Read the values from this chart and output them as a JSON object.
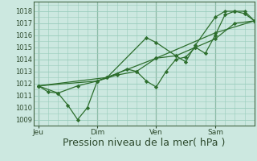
{
  "background_color": "#cce8e0",
  "grid_color": "#99ccbb",
  "line_color": "#2d6e2d",
  "marker_color": "#2d6e2d",
  "xlabel": "Pression niveau de la mer( hPa )",
  "xlabel_fontsize": 9,
  "ylim": [
    1008.5,
    1018.8
  ],
  "yticks": [
    1009,
    1010,
    1011,
    1012,
    1013,
    1014,
    1015,
    1016,
    1017,
    1018
  ],
  "xtick_labels": [
    "Jeu",
    "Dim",
    "Ven",
    "Sam"
  ],
  "xtick_positions": [
    0,
    36,
    72,
    108
  ],
  "xlim": [
    -3,
    132
  ],
  "vlines": [
    0,
    36,
    72,
    108
  ],
  "series": [
    [
      0,
      1011.8,
      6,
      1011.3,
      12,
      1011.2,
      18,
      1010.2,
      24,
      1009.0,
      30,
      1010.0,
      36,
      1012.2,
      42,
      1012.5,
      48,
      1012.8,
      54,
      1013.2,
      60,
      1013.0,
      66,
      1012.2,
      72,
      1011.7,
      78,
      1013.0,
      84,
      1014.0,
      90,
      1014.2,
      96,
      1015.0,
      102,
      1014.5,
      108,
      1016.0,
      114,
      1017.7,
      120,
      1018.0,
      126,
      1018.0,
      132,
      1017.2
    ],
    [
      0,
      1011.8,
      12,
      1011.2,
      24,
      1011.8,
      36,
      1012.2,
      48,
      1012.7,
      60,
      1013.0,
      72,
      1014.1,
      84,
      1014.3,
      96,
      1015.0,
      108,
      1015.7,
      120,
      1017.0,
      132,
      1017.2
    ],
    [
      0,
      1011.8,
      36,
      1012.2,
      72,
      1014.1,
      108,
      1016.2,
      132,
      1017.2
    ],
    [
      0,
      1011.8,
      42,
      1012.5,
      66,
      1015.8,
      72,
      1015.4,
      84,
      1014.3,
      90,
      1013.8,
      96,
      1015.2,
      108,
      1017.5,
      114,
      1018.0,
      120,
      1018.0,
      126,
      1017.8,
      132,
      1017.2
    ]
  ]
}
